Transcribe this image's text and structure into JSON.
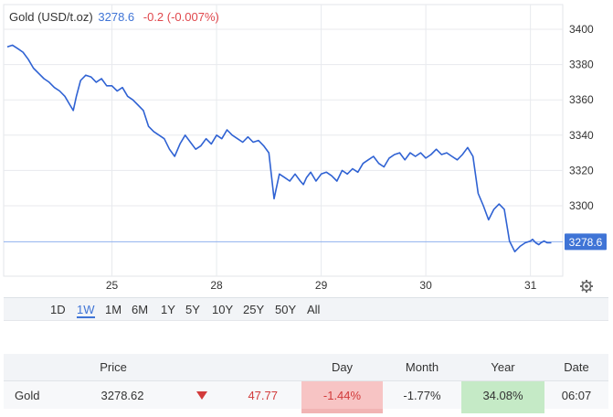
{
  "header": {
    "name": "Gold (USD/t.oz)",
    "price": "3278.6",
    "change": "-0.2 (-0.007%)"
  },
  "chart_data": {
    "type": "line",
    "ylim": [
      3270,
      3410
    ],
    "yticks": [
      3300,
      3320,
      3340,
      3360,
      3380,
      3400
    ],
    "ytick_labels": [
      "3300",
      "3320",
      "3340",
      "3360",
      "3380",
      "3400"
    ],
    "xticks": [
      1,
      2,
      3,
      4,
      5
    ],
    "xtick_labels": [
      "25",
      "28",
      "29",
      "30",
      "31"
    ],
    "x_range": [
      0,
      5.3
    ],
    "reference_line": 3279.6,
    "last_value_label": "3278.6",
    "series": [
      {
        "x": [
          0.0,
          0.05,
          0.1,
          0.15,
          0.2,
          0.25,
          0.3,
          0.35,
          0.4,
          0.45,
          0.5,
          0.55,
          0.6,
          0.63,
          0.66,
          0.7,
          0.75,
          0.8,
          0.85,
          0.9,
          0.95,
          1.0,
          1.05,
          1.1,
          1.15,
          1.2,
          1.25,
          1.3,
          1.35,
          1.4,
          1.45,
          1.5,
          1.55,
          1.6,
          1.65,
          1.7,
          1.75,
          1.8,
          1.85,
          1.9,
          1.95,
          2.0,
          2.05,
          2.1,
          2.15,
          2.2,
          2.25,
          2.3,
          2.35,
          2.4,
          2.45,
          2.5,
          2.55,
          2.6,
          2.65,
          2.7,
          2.75,
          2.8,
          2.83,
          2.86,
          2.9,
          2.95,
          3.0,
          3.05,
          3.1,
          3.15,
          3.2,
          3.25,
          3.3,
          3.35,
          3.4,
          3.45,
          3.5,
          3.55,
          3.6,
          3.65,
          3.7,
          3.75,
          3.8,
          3.85,
          3.9,
          3.95,
          4.0,
          4.05,
          4.1,
          4.15,
          4.2,
          4.25,
          4.3,
          4.35,
          4.4,
          4.45,
          4.5,
          4.55,
          4.6,
          4.65,
          4.7,
          4.75,
          4.8,
          4.85,
          4.9,
          4.95,
          5.0,
          5.02,
          5.05,
          5.08,
          5.1,
          5.13,
          5.16,
          5.2
        ],
        "y": [
          3390,
          3391,
          3389,
          3387,
          3383,
          3378,
          3375,
          3372,
          3370,
          3367,
          3365,
          3362,
          3357,
          3354,
          3362,
          3371,
          3374,
          3373,
          3370,
          3372,
          3368,
          3368,
          3365,
          3367,
          3362,
          3360,
          3357,
          3354,
          3345,
          3342,
          3340,
          3338,
          3332,
          3328,
          3335,
          3340,
          3336,
          3332,
          3334,
          3338,
          3335,
          3340,
          3338,
          3343,
          3340,
          3338,
          3336,
          3339,
          3336,
          3337,
          3334,
          3330,
          3304,
          3318,
          3316,
          3314,
          3318,
          3314,
          3312,
          3316,
          3319,
          3314,
          3318,
          3319,
          3317,
          3314,
          3320,
          3318,
          3321,
          3319,
          3324,
          3326,
          3328,
          3324,
          3322,
          3327,
          3329,
          3330,
          3326,
          3330,
          3328,
          3330,
          3327,
          3329,
          3332,
          3329,
          3330,
          3328,
          3326,
          3329,
          3333,
          3328,
          3307,
          3300,
          3292,
          3298,
          3301,
          3298,
          3280,
          3274,
          3277,
          3279,
          3280,
          3281,
          3279,
          3278,
          3279,
          3280,
          3279,
          3279
        ]
      }
    ]
  },
  "ranges": [
    "1D",
    "1W",
    "1M",
    "6M",
    "1Y",
    "5Y",
    "10Y",
    "25Y",
    "50Y",
    "All"
  ],
  "active_range": "1W",
  "table": {
    "headers": {
      "price": "Price",
      "day": "Day",
      "month": "Month",
      "year": "Year",
      "date": "Date"
    },
    "row": {
      "name": "Gold",
      "price": "3278.62",
      "change": "47.77",
      "day": "-1.44%",
      "month": "-1.77%",
      "year": "34.08%",
      "date": "06:07"
    }
  },
  "colors": {
    "line": "#2f62d3",
    "up_bg": "#c5eac6",
    "down_bg": "#f7c4c4",
    "negative_text": "#d23b3b",
    "accent": "#3f74d6"
  }
}
